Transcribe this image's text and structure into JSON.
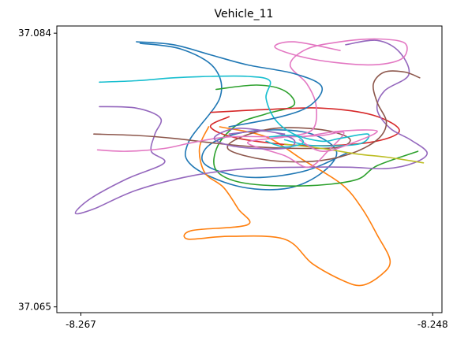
{
  "chart_data": {
    "type": "line",
    "title": "Vehicle_11",
    "xlabel": "",
    "ylabel": "",
    "xlim": [
      -8.2683,
      -8.2475
    ],
    "ylim": [
      37.0646,
      37.0845
    ],
    "x_ticks": [
      -8.267,
      -8.248
    ],
    "x_tick_labels": [
      "-8.267",
      "-8.248"
    ],
    "y_ticks": [
      37.065,
      37.084
    ],
    "y_tick_labels": [
      "37.065",
      "37.084"
    ],
    "grid": false,
    "legend": "none",
    "series": [
      {
        "color": "#1f77b4",
        "points": [
          [
            -8.2638,
            37.0833
          ],
          [
            -8.2616,
            37.0829
          ],
          [
            -8.2598,
            37.0816
          ],
          [
            -8.2595,
            37.0795
          ],
          [
            -8.2612,
            37.0764
          ],
          [
            -8.261,
            37.0748
          ],
          [
            -8.2586,
            37.0734
          ],
          [
            -8.256,
            37.0732
          ],
          [
            -8.2541,
            37.0742
          ],
          [
            -8.2532,
            37.0758
          ],
          [
            -8.2548,
            37.0771
          ],
          [
            -8.2578,
            37.0772
          ],
          [
            -8.26,
            37.0763
          ],
          [
            -8.2603,
            37.0749
          ],
          [
            -8.258,
            37.074
          ],
          [
            -8.255,
            37.0744
          ],
          [
            -8.2526,
            37.0757
          ]
        ]
      },
      {
        "color": "#ff7f0e",
        "points": [
          [
            -8.2601,
            37.0775
          ],
          [
            -8.2606,
            37.076
          ],
          [
            -8.2603,
            37.0743
          ],
          [
            -8.2593,
            37.0733
          ],
          [
            -8.2585,
            37.0718
          ],
          [
            -8.258,
            37.0707
          ],
          [
            -8.261,
            37.0703
          ],
          [
            -8.2612,
            37.0697
          ],
          [
            -8.259,
            37.0699
          ],
          [
            -8.256,
            37.0697
          ],
          [
            -8.2545,
            37.068
          ],
          [
            -8.2528,
            37.0668
          ],
          [
            -8.2518,
            37.0665
          ],
          [
            -8.2508,
            37.0672
          ],
          [
            -8.2503,
            37.0682
          ],
          [
            -8.251,
            37.07
          ],
          [
            -8.2518,
            37.0718
          ],
          [
            -8.2529,
            37.0735
          ],
          [
            -8.255,
            37.0752
          ],
          [
            -8.257,
            37.0768
          ],
          [
            -8.2595,
            37.0775
          ]
        ]
      },
      {
        "color": "#2ca02c",
        "points": [
          [
            -8.2597,
            37.0801
          ],
          [
            -8.2575,
            37.0804
          ],
          [
            -8.256,
            37.08
          ],
          [
            -8.2555,
            37.079
          ],
          [
            -8.257,
            37.0784
          ],
          [
            -8.2585,
            37.0777
          ],
          [
            -8.2596,
            37.0762
          ],
          [
            -8.2597,
            37.0745
          ],
          [
            -8.2582,
            37.0736
          ],
          [
            -8.255,
            37.0734
          ],
          [
            -8.2522,
            37.0738
          ],
          [
            -8.251,
            37.0748
          ],
          [
            -8.2488,
            37.0758
          ]
        ]
      },
      {
        "color": "#d62728",
        "points": [
          [
            -8.26,
            37.0785
          ],
          [
            -8.257,
            37.0787
          ],
          [
            -8.254,
            37.0788
          ],
          [
            -8.2512,
            37.0783
          ],
          [
            -8.2498,
            37.0772
          ],
          [
            -8.2515,
            37.0764
          ],
          [
            -8.255,
            37.0762
          ],
          [
            -8.2585,
            37.0767
          ],
          [
            -8.26,
            37.0775
          ],
          [
            -8.259,
            37.0782
          ]
        ]
      },
      {
        "color": "#9467bd",
        "points": [
          [
            -8.266,
            37.0789
          ],
          [
            -8.264,
            37.0788
          ],
          [
            -8.2627,
            37.0781
          ],
          [
            -8.263,
            37.077
          ],
          [
            -8.2632,
            37.0758
          ],
          [
            -8.2625,
            37.075
          ],
          [
            -8.2645,
            37.0739
          ],
          [
            -8.2665,
            37.0725
          ],
          [
            -8.2673,
            37.0715
          ],
          [
            -8.2663,
            37.0718
          ],
          [
            -8.264,
            37.0731
          ],
          [
            -8.261,
            37.0741
          ],
          [
            -8.258,
            37.0746
          ],
          [
            -8.255,
            37.0747
          ],
          [
            -8.2525,
            37.0747
          ],
          [
            -8.2505,
            37.0746
          ],
          [
            -8.249,
            37.075
          ],
          [
            -8.2483,
            37.0757
          ],
          [
            -8.2492,
            37.0766
          ],
          [
            -8.2503,
            37.0774
          ],
          [
            -8.251,
            37.0787
          ],
          [
            -8.2506,
            37.08
          ],
          [
            -8.2493,
            37.0811
          ],
          [
            -8.2498,
            37.0827
          ],
          [
            -8.251,
            37.0835
          ],
          [
            -8.2527,
            37.0832
          ]
        ]
      },
      {
        "color": "#8c564b",
        "points": [
          [
            -8.2663,
            37.077
          ],
          [
            -8.264,
            37.0769
          ],
          [
            -8.262,
            37.0767
          ],
          [
            -8.26,
            37.0764
          ],
          [
            -8.2575,
            37.0761
          ],
          [
            -8.255,
            37.076
          ],
          [
            -8.253,
            37.0761
          ],
          [
            -8.2525,
            37.0767
          ],
          [
            -8.254,
            37.0773
          ],
          [
            -8.2565,
            37.0774
          ],
          [
            -8.2585,
            37.0767
          ],
          [
            -8.259,
            37.0759
          ],
          [
            -8.257,
            37.0752
          ],
          [
            -8.2545,
            37.0751
          ],
          [
            -8.2525,
            37.0756
          ],
          [
            -8.251,
            37.0766
          ],
          [
            -8.2505,
            37.0778
          ],
          [
            -8.251,
            37.0792
          ],
          [
            -8.2512,
            37.0805
          ],
          [
            -8.2506,
            37.0813
          ],
          [
            -8.2495,
            37.0813
          ],
          [
            -8.2487,
            37.0809
          ]
        ]
      },
      {
        "color": "#e377c2",
        "points": [
          [
            -8.2661,
            37.0759
          ],
          [
            -8.2645,
            37.0758
          ],
          [
            -8.2625,
            37.076
          ],
          [
            -8.261,
            37.0764
          ],
          [
            -8.259,
            37.0768
          ],
          [
            -8.256,
            37.0768
          ],
          [
            -8.254,
            37.0769
          ],
          [
            -8.2528,
            37.0771
          ],
          [
            -8.2536,
            37.0759
          ],
          [
            -8.2547,
            37.0747
          ],
          [
            -8.256,
            37.0755
          ],
          [
            -8.258,
            37.0764
          ],
          [
            -8.256,
            37.0768
          ],
          [
            -8.2545,
            37.0773
          ],
          [
            -8.2543,
            37.079
          ],
          [
            -8.2548,
            37.0805
          ],
          [
            -8.2557,
            37.0818
          ],
          [
            -8.2548,
            37.0829
          ],
          [
            -8.253,
            37.0834
          ],
          [
            -8.251,
            37.0836
          ],
          [
            -8.2495,
            37.0833
          ],
          [
            -8.2497,
            37.0822
          ],
          [
            -8.2515,
            37.0818
          ],
          [
            -8.2545,
            37.0822
          ],
          [
            -8.2565,
            37.083
          ],
          [
            -8.2555,
            37.0834
          ],
          [
            -8.253,
            37.0828
          ]
        ]
      },
      {
        "color": "#bcbd22",
        "points": [
          [
            -8.256,
            37.0763
          ],
          [
            -8.254,
            37.076
          ],
          [
            -8.252,
            37.0756
          ],
          [
            -8.2505,
            37.0754
          ],
          [
            -8.2485,
            37.075
          ]
        ]
      },
      {
        "color": "#17becf",
        "points": [
          [
            -8.266,
            37.0806
          ],
          [
            -8.264,
            37.0807
          ],
          [
            -8.262,
            37.0809
          ],
          [
            -8.26,
            37.081
          ],
          [
            -8.258,
            37.081
          ],
          [
            -8.2568,
            37.0807
          ],
          [
            -8.257,
            37.0795
          ],
          [
            -8.2565,
            37.078
          ],
          [
            -8.2555,
            37.077
          ],
          [
            -8.254,
            37.0765
          ],
          [
            -8.253,
            37.0767
          ],
          [
            -8.2515,
            37.077
          ],
          [
            -8.252,
            37.0763
          ],
          [
            -8.2545,
            37.0762
          ],
          [
            -8.256,
            37.0766
          ]
        ]
      },
      {
        "color": "#1f77b4",
        "points": [
          [
            -8.264,
            37.0834
          ],
          [
            -8.262,
            37.0832
          ],
          [
            -8.26,
            37.0825
          ],
          [
            -8.258,
            37.0818
          ],
          [
            -8.2555,
            37.0812
          ],
          [
            -8.254,
            37.0803
          ],
          [
            -8.2546,
            37.079
          ],
          [
            -8.2562,
            37.0782
          ],
          [
            -8.259,
            37.0775
          ]
        ]
      },
      {
        "color": "#9467bd",
        "points": [
          [
            -8.259,
            37.077
          ],
          [
            -8.257,
            37.0772
          ],
          [
            -8.2555,
            37.0766
          ],
          [
            -8.256,
            37.076
          ],
          [
            -8.2585,
            37.0761
          ],
          [
            -8.2598,
            37.0767
          ],
          [
            -8.2585,
            37.0774
          ],
          [
            -8.256,
            37.077
          ]
        ]
      },
      {
        "color": "#e377c2",
        "points": [
          [
            -8.255,
            37.0768
          ],
          [
            -8.253,
            37.0772
          ],
          [
            -8.251,
            37.0772
          ],
          [
            -8.2525,
            37.0763
          ],
          [
            -8.254,
            37.0758
          ],
          [
            -8.2552,
            37.0766
          ]
        ]
      },
      {
        "color": "#17becf",
        "points": [
          [
            -8.257,
            37.0765
          ],
          [
            -8.256,
            37.0761
          ],
          [
            -8.255,
            37.0764
          ],
          [
            -8.2555,
            37.0769
          ],
          [
            -8.2568,
            37.0768
          ]
        ]
      }
    ]
  }
}
